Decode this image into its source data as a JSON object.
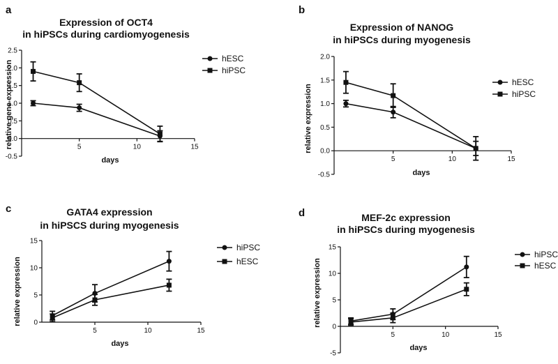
{
  "chart_data": [
    {
      "panel": "a",
      "type": "line",
      "title_lines": [
        "Expression of OCT4",
        "in hiPSCs during cardiomyogenesis"
      ],
      "xlabel": "days",
      "ylabel": "relative gene expression",
      "xlim": [
        0,
        15
      ],
      "ylim": [
        -0.5,
        2.5
      ],
      "xticks": [
        5,
        10,
        15
      ],
      "yticks": [
        -0.5,
        0.0,
        0.5,
        1.0,
        1.5,
        2.0,
        2.5
      ],
      "ytick_labels": [
        "-0.5",
        "0.0",
        "0.5",
        "1.0",
        "1.5",
        "2.0",
        "2.5"
      ],
      "legend": "top-right",
      "x": [
        1,
        5,
        12
      ],
      "series": [
        {
          "name": "hESC",
          "marker": "circle",
          "values": [
            1.0,
            0.87,
            0.07
          ],
          "errors": [
            0.07,
            0.1,
            0.15
          ]
        },
        {
          "name": "hiPSC",
          "marker": "square",
          "values": [
            1.9,
            1.58,
            0.13
          ],
          "errors": [
            0.27,
            0.25,
            0.22
          ]
        }
      ]
    },
    {
      "panel": "b",
      "type": "line",
      "title_lines": [
        "Expression of NANOG",
        "in hiPSCs during myogenesis"
      ],
      "xlabel": "days",
      "ylabel": "relative expression",
      "xlim": [
        0,
        15
      ],
      "ylim": [
        -0.5,
        2.0
      ],
      "xticks": [
        5,
        10,
        15
      ],
      "yticks": [
        -0.5,
        0.0,
        0.5,
        1.0,
        1.5,
        2.0
      ],
      "ytick_labels": [
        "-0.5",
        "0.0",
        "0.5",
        "1.0",
        "1.5",
        "2.0"
      ],
      "legend": "right",
      "x": [
        1,
        5,
        12
      ],
      "series": [
        {
          "name": "hESC",
          "marker": "circle",
          "values": [
            1.0,
            0.82,
            0.05
          ],
          "errors": [
            0.07,
            0.12,
            0.15
          ]
        },
        {
          "name": "hiPSC",
          "marker": "square",
          "values": [
            1.45,
            1.17,
            0.05
          ],
          "errors": [
            0.23,
            0.25,
            0.25
          ]
        }
      ]
    },
    {
      "panel": "c",
      "type": "line",
      "title_lines": [
        "GATA4 expression",
        "in hiPSCS during myogenesis"
      ],
      "xlabel": "days",
      "ylabel": "relative expression",
      "xlim": [
        0,
        15
      ],
      "ylim": [
        0,
        15
      ],
      "xticks": [
        5,
        10,
        15
      ],
      "yticks": [
        0,
        5,
        10,
        15
      ],
      "ytick_labels": [
        "0",
        "5",
        "10",
        "15"
      ],
      "legend": "top-right",
      "x": [
        1,
        5,
        12
      ],
      "series": [
        {
          "name": "hiPSC",
          "marker": "circle",
          "values": [
            1.2,
            5.3,
            11.2
          ],
          "errors": [
            0.8,
            1.6,
            1.8
          ]
        },
        {
          "name": "hESC",
          "marker": "square",
          "values": [
            0.8,
            4.1,
            6.8
          ],
          "errors": [
            0.7,
            1.0,
            1.1
          ]
        }
      ]
    },
    {
      "panel": "d",
      "type": "line",
      "title_lines": [
        "MEF-2c expression",
        "in hiPSCs during myogenesis"
      ],
      "xlabel": "days",
      "ylabel": "relative expression",
      "xlim": [
        0,
        15
      ],
      "ylim": [
        -5,
        15
      ],
      "xticks": [
        5,
        10,
        15
      ],
      "yticks": [
        -5,
        0,
        5,
        10,
        15
      ],
      "ytick_labels": [
        "-5",
        "0",
        "5",
        "10",
        "15"
      ],
      "legend": "right",
      "x": [
        1,
        5,
        12
      ],
      "series": [
        {
          "name": "hiPSC",
          "marker": "circle",
          "values": [
            1.0,
            2.3,
            11.2
          ],
          "errors": [
            0.6,
            1.0,
            2.0
          ]
        },
        {
          "name": "hESC",
          "marker": "square",
          "values": [
            0.8,
            1.6,
            7.0
          ],
          "errors": [
            0.6,
            0.9,
            1.2
          ]
        }
      ]
    }
  ],
  "panel_labels": [
    "a",
    "b",
    "c",
    "d"
  ]
}
